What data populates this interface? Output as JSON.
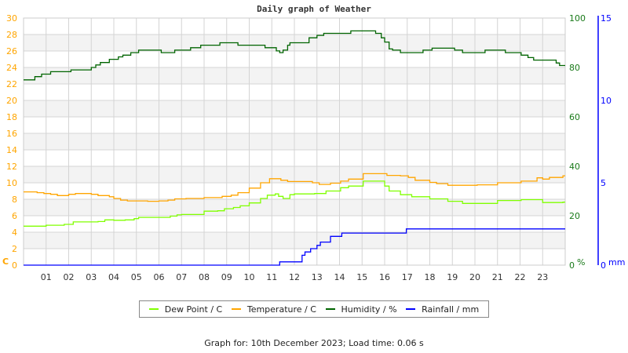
{
  "colors": {
    "dew": "#80ff00",
    "temp": "#ffa500",
    "hum": "#006400",
    "rain": "#0000ff",
    "grid": "#d4d4d4",
    "band": "#f3f3f3",
    "left_axis": "#ffa500",
    "hum_axis": "#1a7a1a",
    "rain_axis": "#0000ff"
  },
  "chart_data": {
    "type": "line",
    "title": "Daily graph of Weather",
    "x_ticks": [
      "01",
      "02",
      "03",
      "04",
      "05",
      "06",
      "07",
      "08",
      "09",
      "10",
      "11",
      "12",
      "13",
      "14",
      "15",
      "16",
      "17",
      "18",
      "19",
      "20",
      "21",
      "22",
      "23"
    ],
    "xlim": [
      0,
      24
    ],
    "axes": {
      "left": {
        "unit": "C",
        "ylim": [
          0,
          30
        ],
        "ticks": [
          "0",
          "2",
          "4",
          "6",
          "8",
          "10",
          "12",
          "14",
          "16",
          "18",
          "20",
          "22",
          "24",
          "26",
          "28",
          "30"
        ]
      },
      "humidity": {
        "unit": "%",
        "ylim": [
          0,
          100
        ],
        "ticks": [
          "0",
          "20",
          "40",
          "60",
          "80",
          "100"
        ]
      },
      "rain": {
        "unit": "mm",
        "ylim": [
          0,
          15
        ],
        "ticks": [
          "0",
          "5",
          "10",
          "15"
        ]
      }
    },
    "grid": true,
    "legend_position": "bottom-center",
    "series": [
      {
        "name": "Dew Point / C",
        "axis": "left",
        "color_key": "dew",
        "points": [
          [
            0,
            4.73
          ],
          [
            1,
            4.85
          ],
          [
            1.8,
            4.95
          ],
          [
            2.2,
            5.25
          ],
          [
            3.3,
            5.3
          ],
          [
            3.6,
            5.5
          ],
          [
            4,
            5.45
          ],
          [
            4.5,
            5.5
          ],
          [
            4.9,
            5.65
          ],
          [
            5.1,
            5.8
          ],
          [
            6,
            5.8
          ],
          [
            6.5,
            5.95
          ],
          [
            6.8,
            6.1
          ],
          [
            7,
            6.15
          ],
          [
            7.85,
            6.15
          ],
          [
            8,
            6.55
          ],
          [
            8.6,
            6.6
          ],
          [
            8.9,
            6.85
          ],
          [
            9.3,
            7.0
          ],
          [
            9.6,
            7.2
          ],
          [
            10,
            7.55
          ],
          [
            10.5,
            8.1
          ],
          [
            10.8,
            8.5
          ],
          [
            11.15,
            8.65
          ],
          [
            11.3,
            8.35
          ],
          [
            11.5,
            8.1
          ],
          [
            11.8,
            8.55
          ],
          [
            12,
            8.65
          ],
          [
            12.9,
            8.7
          ],
          [
            13.4,
            9.0
          ],
          [
            14.05,
            9.4
          ],
          [
            14.4,
            9.6
          ],
          [
            15.05,
            10.2
          ],
          [
            15.85,
            10.2
          ],
          [
            16,
            9.6
          ],
          [
            16.2,
            9.0
          ],
          [
            16.7,
            8.55
          ],
          [
            17.2,
            8.3
          ],
          [
            18,
            8.05
          ],
          [
            18.8,
            7.75
          ],
          [
            19.45,
            7.5
          ],
          [
            20.1,
            7.5
          ],
          [
            21,
            7.85
          ],
          [
            22.05,
            7.95
          ],
          [
            23,
            7.6
          ],
          [
            23.9,
            7.65
          ],
          [
            24,
            7.65
          ]
        ]
      },
      {
        "name": "Temperature / C",
        "axis": "left",
        "color_key": "temp",
        "points": [
          [
            0,
            8.9
          ],
          [
            0.6,
            8.8
          ],
          [
            0.9,
            8.7
          ],
          [
            1.2,
            8.6
          ],
          [
            1.5,
            8.45
          ],
          [
            2,
            8.6
          ],
          [
            2.3,
            8.7
          ],
          [
            3,
            8.6
          ],
          [
            3.3,
            8.45
          ],
          [
            3.8,
            8.3
          ],
          [
            4,
            8.1
          ],
          [
            4.3,
            7.9
          ],
          [
            4.6,
            7.8
          ],
          [
            5.5,
            7.75
          ],
          [
            6,
            7.8
          ],
          [
            6.4,
            7.9
          ],
          [
            6.7,
            8.05
          ],
          [
            7.2,
            8.1
          ],
          [
            8,
            8.2
          ],
          [
            8.8,
            8.35
          ],
          [
            9.2,
            8.5
          ],
          [
            9.5,
            8.8
          ],
          [
            10,
            9.35
          ],
          [
            10.5,
            10.0
          ],
          [
            10.9,
            10.5
          ],
          [
            11.2,
            10.5
          ],
          [
            11.4,
            10.3
          ],
          [
            11.7,
            10.15
          ],
          [
            12.5,
            10.15
          ],
          [
            12.8,
            10.0
          ],
          [
            13.1,
            9.8
          ],
          [
            13.6,
            9.95
          ],
          [
            14.05,
            10.2
          ],
          [
            14.4,
            10.45
          ],
          [
            15.05,
            11.1
          ],
          [
            15.85,
            11.1
          ],
          [
            16.1,
            10.9
          ],
          [
            16.7,
            10.85
          ],
          [
            17.05,
            10.65
          ],
          [
            17.35,
            10.3
          ],
          [
            18,
            10.05
          ],
          [
            18.3,
            9.9
          ],
          [
            18.8,
            9.7
          ],
          [
            20.1,
            9.75
          ],
          [
            21,
            10.0
          ],
          [
            22.05,
            10.2
          ],
          [
            22.75,
            10.6
          ],
          [
            23,
            10.45
          ],
          [
            23.3,
            10.65
          ],
          [
            23.9,
            10.85
          ],
          [
            24,
            10.85
          ]
        ]
      },
      {
        "name": "Humidity / %",
        "axis": "humidity",
        "color_key": "hum",
        "points": [
          [
            0,
            75
          ],
          [
            0.5,
            76.3
          ],
          [
            0.8,
            77.3
          ],
          [
            1.2,
            78.3
          ],
          [
            2.1,
            79
          ],
          [
            3,
            80
          ],
          [
            3.2,
            81
          ],
          [
            3.4,
            82
          ],
          [
            3.8,
            83.3
          ],
          [
            4.2,
            84.3
          ],
          [
            4.4,
            85
          ],
          [
            4.75,
            86
          ],
          [
            5.1,
            87
          ],
          [
            6.1,
            86
          ],
          [
            6.7,
            87
          ],
          [
            7.4,
            88
          ],
          [
            7.85,
            89
          ],
          [
            8.7,
            90
          ],
          [
            9.5,
            89
          ],
          [
            10.7,
            88
          ],
          [
            11.2,
            86.7
          ],
          [
            11.35,
            86
          ],
          [
            11.5,
            87
          ],
          [
            11.7,
            89
          ],
          [
            11.8,
            90
          ],
          [
            12.65,
            92
          ],
          [
            13.0,
            93
          ],
          [
            13.3,
            93.8
          ],
          [
            14.5,
            94.8
          ],
          [
            15.6,
            93.8
          ],
          [
            15.85,
            92
          ],
          [
            16.0,
            90.3
          ],
          [
            16.2,
            87.5
          ],
          [
            16.35,
            87
          ],
          [
            16.7,
            86
          ],
          [
            17.7,
            87
          ],
          [
            18.1,
            87.8
          ],
          [
            19.1,
            87
          ],
          [
            19.45,
            86
          ],
          [
            20.45,
            87
          ],
          [
            21.35,
            86
          ],
          [
            22.05,
            85
          ],
          [
            22.35,
            84
          ],
          [
            22.6,
            83
          ],
          [
            23.6,
            81.8
          ],
          [
            23.75,
            80.8
          ],
          [
            24,
            80.8
          ]
        ]
      },
      {
        "name": "Rainfall / mm",
        "axis": "rain",
        "color_key": "rain",
        "points": [
          [
            0,
            0
          ],
          [
            11.35,
            0.2
          ],
          [
            12.34,
            0.6
          ],
          [
            12.47,
            0.8
          ],
          [
            12.72,
            1.0
          ],
          [
            13.0,
            1.2
          ],
          [
            13.15,
            1.4
          ],
          [
            13.6,
            1.75
          ],
          [
            14.1,
            1.95
          ],
          [
            16.96,
            2.2
          ],
          [
            24,
            2.2
          ]
        ]
      }
    ]
  },
  "legend": [
    {
      "label": "Dew Point / C",
      "color_key": "dew"
    },
    {
      "label": "Temperature / C",
      "color_key": "temp"
    },
    {
      "label": "Humidity / %",
      "color_key": "hum"
    },
    {
      "label": "Rainfall / mm",
      "color_key": "rain"
    }
  ],
  "footer": "Graph for: 10th December 2023; Load time: 0.06 s"
}
